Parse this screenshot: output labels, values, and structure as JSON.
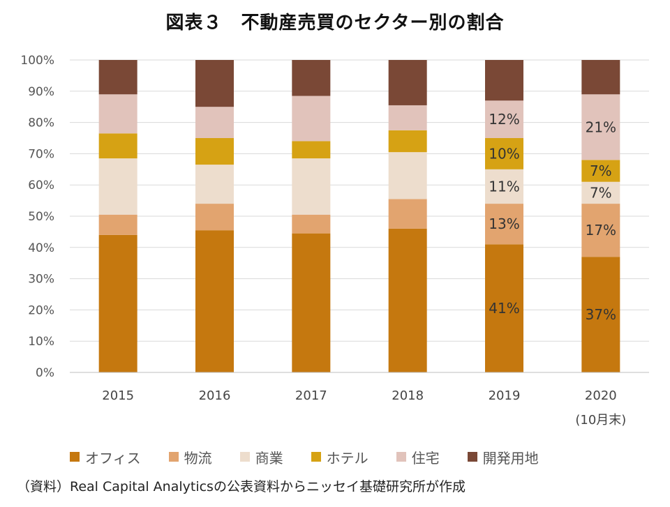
{
  "chart_data": {
    "type": "bar",
    "stacked": true,
    "title": "図表３　不動産売買のセクター別の割合",
    "categories": [
      "2015",
      "2016",
      "2017",
      "2018",
      "2019",
      "2020"
    ],
    "category_sublabels": [
      "",
      "",
      "",
      "",
      "",
      "(10月末)"
    ],
    "yticks": [
      "0%",
      "10%",
      "20%",
      "30%",
      "40%",
      "50%",
      "60%",
      "70%",
      "80%",
      "90%",
      "100%"
    ],
    "ylim": [
      0,
      100
    ],
    "series": [
      {
        "name": "オフィス",
        "color": "#C5780F",
        "values": [
          44,
          45.5,
          44.5,
          46,
          41,
          37
        ],
        "labels": [
          "",
          "",
          "",
          "",
          "41%",
          "37%"
        ]
      },
      {
        "name": "物流",
        "color": "#E2A46F",
        "values": [
          6.5,
          8.5,
          6,
          9.5,
          13,
          17
        ],
        "labels": [
          "",
          "",
          "",
          "",
          "13%",
          "17%"
        ]
      },
      {
        "name": "商業",
        "color": "#EDDDCD",
        "values": [
          18,
          12.5,
          18,
          15,
          11,
          7
        ],
        "labels": [
          "",
          "",
          "",
          "",
          "11%",
          "7%"
        ]
      },
      {
        "name": "ホテル",
        "color": "#D6A214",
        "values": [
          8,
          8.5,
          5.5,
          7,
          10,
          7
        ],
        "labels": [
          "",
          "",
          "",
          "",
          "10%",
          "7%"
        ]
      },
      {
        "name": "住宅",
        "color": "#E1C3BB",
        "values": [
          12.5,
          10,
          14.5,
          8,
          12,
          21
        ],
        "labels": [
          "",
          "",
          "",
          "",
          "12%",
          "21%"
        ]
      },
      {
        "name": "開発用地",
        "color": "#7A4836",
        "values": [
          11,
          15,
          11.5,
          14.5,
          13,
          11
        ],
        "labels": [
          "",
          "",
          "",
          "",
          "",
          ""
        ]
      }
    ],
    "source": "（資料）Real Capital Analyticsの公表資料からニッセイ基礎研究所が作成"
  }
}
